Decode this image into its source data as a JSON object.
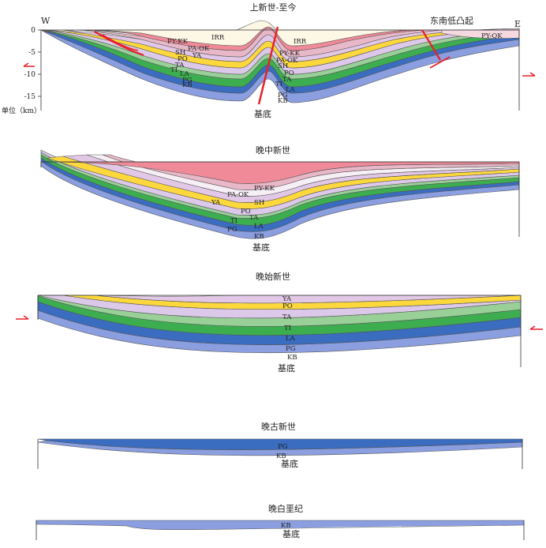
{
  "panels": [
    {
      "title": "上新世-至今",
      "west_label": "W",
      "east_label": "E",
      "depth_ticks": [
        "0",
        "-5",
        "-10",
        "-15"
      ],
      "unit_label": "单位（km）",
      "basement_label": "基底",
      "uplift_label": "东南低凸起",
      "unit_labels": [
        "IRR",
        "IRR",
        "PY-KK",
        "PA-OK",
        "SH",
        "YA",
        "PO",
        "TA",
        "TI",
        "LA",
        "PG",
        "KB",
        "PY-KK",
        "PA-OK",
        "SH",
        "PO",
        "TA",
        "TI",
        "LA",
        "PG",
        "KB",
        "PY-QK"
      ]
    },
    {
      "title": "晚中新世",
      "basement_label": "基底",
      "unit_labels": [
        "PY-KK",
        "PA-OK",
        "SH",
        "YA",
        "PO",
        "TA",
        "TI",
        "LA",
        "PG",
        "KB"
      ]
    },
    {
      "title": "晚始新世",
      "basement_label": "基底",
      "unit_labels": [
        "YA",
        "PO",
        "TA",
        "TI",
        "LA",
        "PG",
        "KB"
      ]
    },
    {
      "title": "晚古新世",
      "basement_label": "基底",
      "unit_labels": [
        "PG",
        "KB"
      ]
    },
    {
      "title": "晚白垩纪",
      "basement_label": "基底",
      "unit_labels": [
        "KB"
      ]
    }
  ],
  "colors": {
    "IRR": "#fdf8e6",
    "PY-KK": "#f08a98",
    "PA-OK": "#e8b8c8",
    "SH": "#f6f0f6",
    "YA": "#e2c8e6",
    "PO": "#fcd83c",
    "TA": "#dcc8e8",
    "TI": "#98d098",
    "LA": "#3cae50",
    "PG": "#3a6cc0",
    "KB": "#8a9ee0",
    "fault": "#e8202a"
  }
}
